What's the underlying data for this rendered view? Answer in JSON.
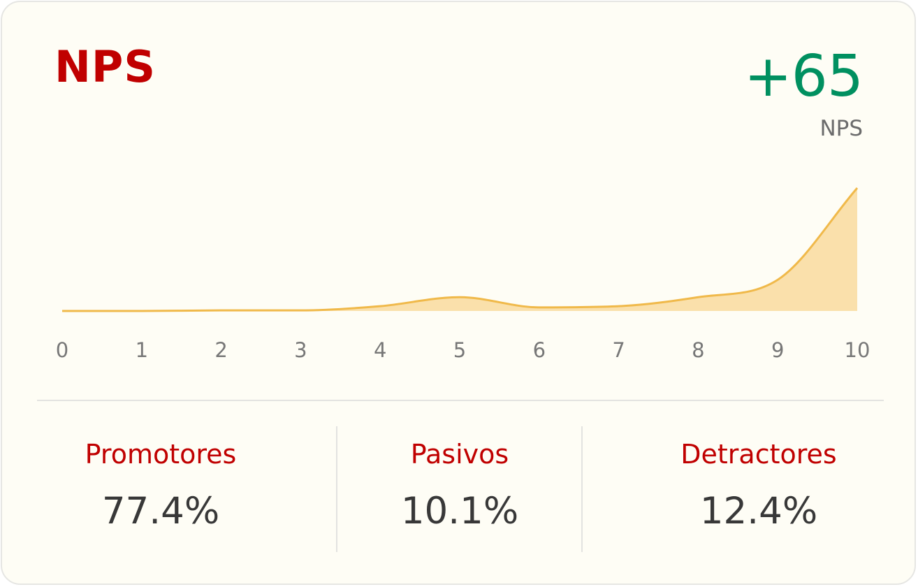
{
  "header": {
    "title": "NPS"
  },
  "score": {
    "value": "+65",
    "label": "NPS"
  },
  "chart_data": {
    "type": "area",
    "x": [
      0,
      1,
      2,
      3,
      4,
      5,
      6,
      7,
      8,
      9,
      10
    ],
    "values": [
      0,
      0,
      0.1,
      0.1,
      0.8,
      2.3,
      0.6,
      0.8,
      2.3,
      5.2,
      20.5
    ],
    "xlim": [
      0,
      10
    ],
    "tick_labels": [
      "0",
      "1",
      "2",
      "3",
      "4",
      "5",
      "6",
      "7",
      "8",
      "9",
      "10"
    ],
    "line_color": "#f0b94a",
    "fill_color": "#fae0ab",
    "grid": false
  },
  "stats": [
    {
      "label": "Promotores",
      "value": "77.4%"
    },
    {
      "label": "Pasivos",
      "value": "10.1%"
    },
    {
      "label": "Detractores",
      "value": "12.4%"
    }
  ],
  "colors": {
    "accent": "#c00000",
    "positive": "#009060",
    "card_bg": "#fefdf5"
  }
}
